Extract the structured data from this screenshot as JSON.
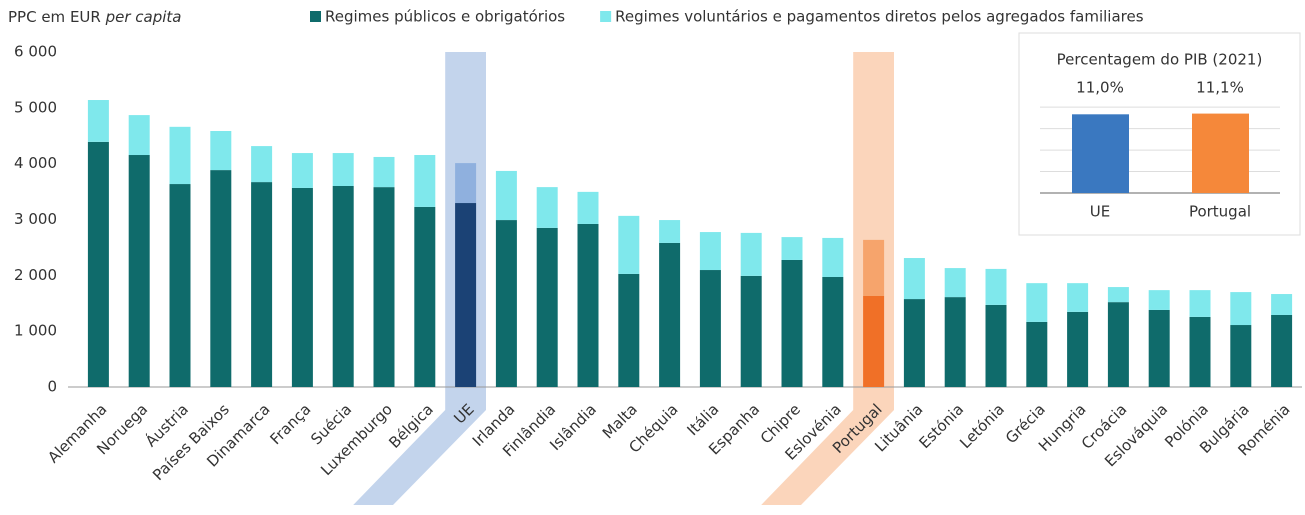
{
  "chart_data": [
    {
      "type": "bar",
      "stacked": true,
      "y_label": "PPC em EUR",
      "y_label_italic": "per capita",
      "categories": [
        "Alemanha",
        "Noruega",
        "Áustria",
        "Países Baixos",
        "Dinamarca",
        "França",
        "Suécia",
        "Luxemburgo",
        "Bélgica",
        "UE",
        "Irlanda",
        "Finlândia",
        "Islândia",
        "Malta",
        "Chéquia",
        "Itália",
        "Espanha",
        "Chipre",
        "Eslovénia",
        "Portugal",
        "Lituânia",
        "Estónia",
        "Letónia",
        "Grécia",
        "Hungria",
        "Croácia",
        "Eslováquia",
        "Polónia",
        "Bulgária",
        "Roménia"
      ],
      "series": [
        {
          "name": "Regimes públicos e obrigatórios",
          "color": "#0f6b6b",
          "values": [
            4390,
            4155,
            3635,
            3885,
            3670,
            3565,
            3600,
            3580,
            3225,
            3295,
            2990,
            2850,
            2920,
            2025,
            2580,
            2095,
            1990,
            2275,
            1970,
            1630,
            1575,
            1610,
            1470,
            1165,
            1345,
            1520,
            1380,
            1255,
            1110,
            1290
          ]
        },
        {
          "name": "Regimes voluntários e pagamentos diretos pelos agregados familiares",
          "color": "#7fe8ec",
          "values": [
            750,
            715,
            1025,
            700,
            645,
            625,
            590,
            540,
            930,
            715,
            880,
            730,
            575,
            1040,
            410,
            680,
            770,
            410,
            700,
            1005,
            735,
            520,
            645,
            695,
            515,
            270,
            355,
            480,
            590,
            375
          ]
        }
      ],
      "highlight": [
        {
          "category_index": 9,
          "colors": [
            "#1b4275",
            "#8fb0de"
          ],
          "band_color": "#c3d4ec"
        },
        {
          "category_index": 19,
          "colors": [
            "#f07027",
            "#f6a46c"
          ],
          "band_color": "#fbd5bb"
        }
      ],
      "ylim": [
        0,
        6000
      ],
      "yticks": [
        {
          "value": 0,
          "label": "0"
        },
        {
          "value": 1000,
          "label": "1 000"
        },
        {
          "value": 2000,
          "label": "2 000"
        },
        {
          "value": 3000,
          "label": "3 000"
        },
        {
          "value": 4000,
          "label": "4 000"
        },
        {
          "value": 5000,
          "label": "5 000"
        },
        {
          "value": 6000,
          "label": "6 000"
        }
      ]
    },
    {
      "type": "bar",
      "title": "Percentagem do PIB (2021)",
      "categories": [
        "UE",
        "Portugal"
      ],
      "values": [
        11.0,
        11.1
      ],
      "value_labels": [
        "11,0%",
        "11,1%"
      ],
      "colors": [
        "#3a78c0",
        "#f5883a"
      ],
      "ylim": [
        0,
        13
      ],
      "yticks": [
        0,
        3,
        6,
        9,
        12
      ],
      "grid": true
    }
  ]
}
